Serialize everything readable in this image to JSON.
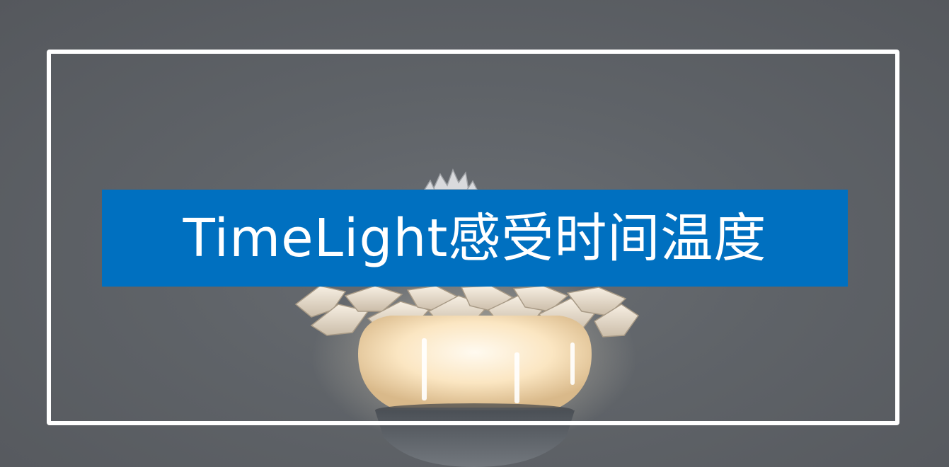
{
  "banner": {
    "title": "TimeLight感受时间温度"
  },
  "colors": {
    "background": "#5f6368",
    "banner": "#0070c0",
    "frame": "#ffffff",
    "title_text": "#ffffff",
    "lamp_glow": "#fff4dc"
  }
}
